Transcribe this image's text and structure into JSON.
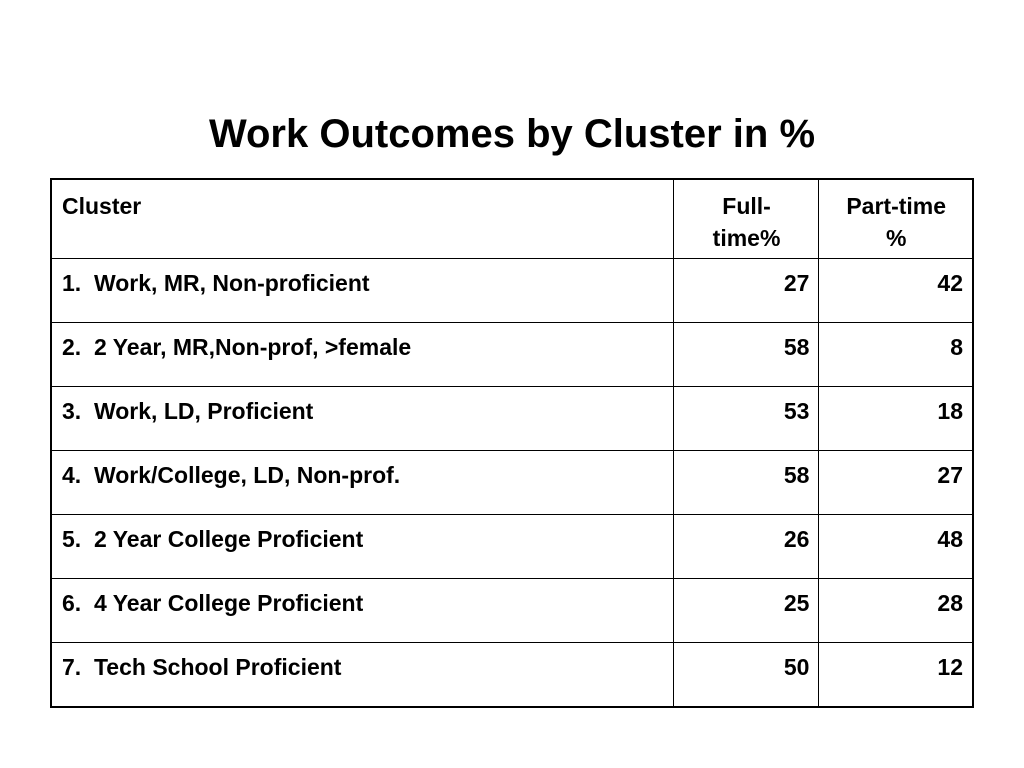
{
  "title": "Work Outcomes by Cluster in %",
  "table": {
    "headers": {
      "cluster": "Cluster",
      "full_time_1": "Full-",
      "full_time_2": "time%",
      "part_time_1": "Part-time",
      "part_time_2": "%"
    },
    "rows": [
      {
        "cluster": "1.  Work, MR, Non-proficient",
        "full_time": "27",
        "part_time": "42"
      },
      {
        "cluster": "2.  2 Year, MR,Non-prof, >female",
        "full_time": "58",
        "part_time": "8"
      },
      {
        "cluster": "3.  Work, LD, Proficient",
        "full_time": "53",
        "part_time": "18"
      },
      {
        "cluster": "4.  Work/College, LD, Non-prof.",
        "full_time": "58",
        "part_time": "27"
      },
      {
        "cluster": "5.  2 Year College Proficient",
        "full_time": "26",
        "part_time": "48"
      },
      {
        "cluster": "6.  4 Year College Proficient",
        "full_time": "25",
        "part_time": "28"
      },
      {
        "cluster": "7.  Tech School Proficient",
        "full_time": "50",
        "part_time": "12"
      }
    ]
  }
}
